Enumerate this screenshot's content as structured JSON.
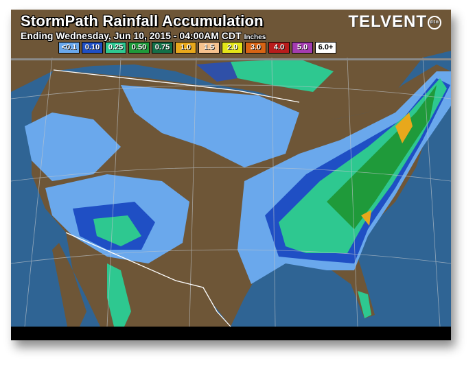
{
  "header": {
    "title": "StormPath Rainfall Accumulation",
    "subtitle": "Ending Wednesday, Jun 10, 2015 - 04:00AM CDT",
    "units": "Inches",
    "brand": "TELVENT",
    "brand_badge": "dtn"
  },
  "legend": [
    {
      "label": "<0.1",
      "color": "#6aa8ec"
    },
    {
      "label": "0.10",
      "color": "#1f4fc4"
    },
    {
      "label": "0.25",
      "color": "#2ec890"
    },
    {
      "label": "0.50",
      "color": "#1f9a3a"
    },
    {
      "label": "0.75",
      "color": "#137048"
    },
    {
      "label": "1.0",
      "color": "#e8a81c"
    },
    {
      "label": "1.5",
      "color": "#f6c28e"
    },
    {
      "label": "2.0",
      "color": "#e4e418"
    },
    {
      "label": "3.0",
      "color": "#d86414"
    },
    {
      "label": "4.0",
      "color": "#b81c1c"
    },
    {
      "label": "5.0",
      "color": "#a43cb0"
    },
    {
      "label": "6.0+",
      "color": "#ffffff"
    }
  ],
  "colors": {
    "ocean": "#2f6494",
    "land": "#6e5637"
  }
}
